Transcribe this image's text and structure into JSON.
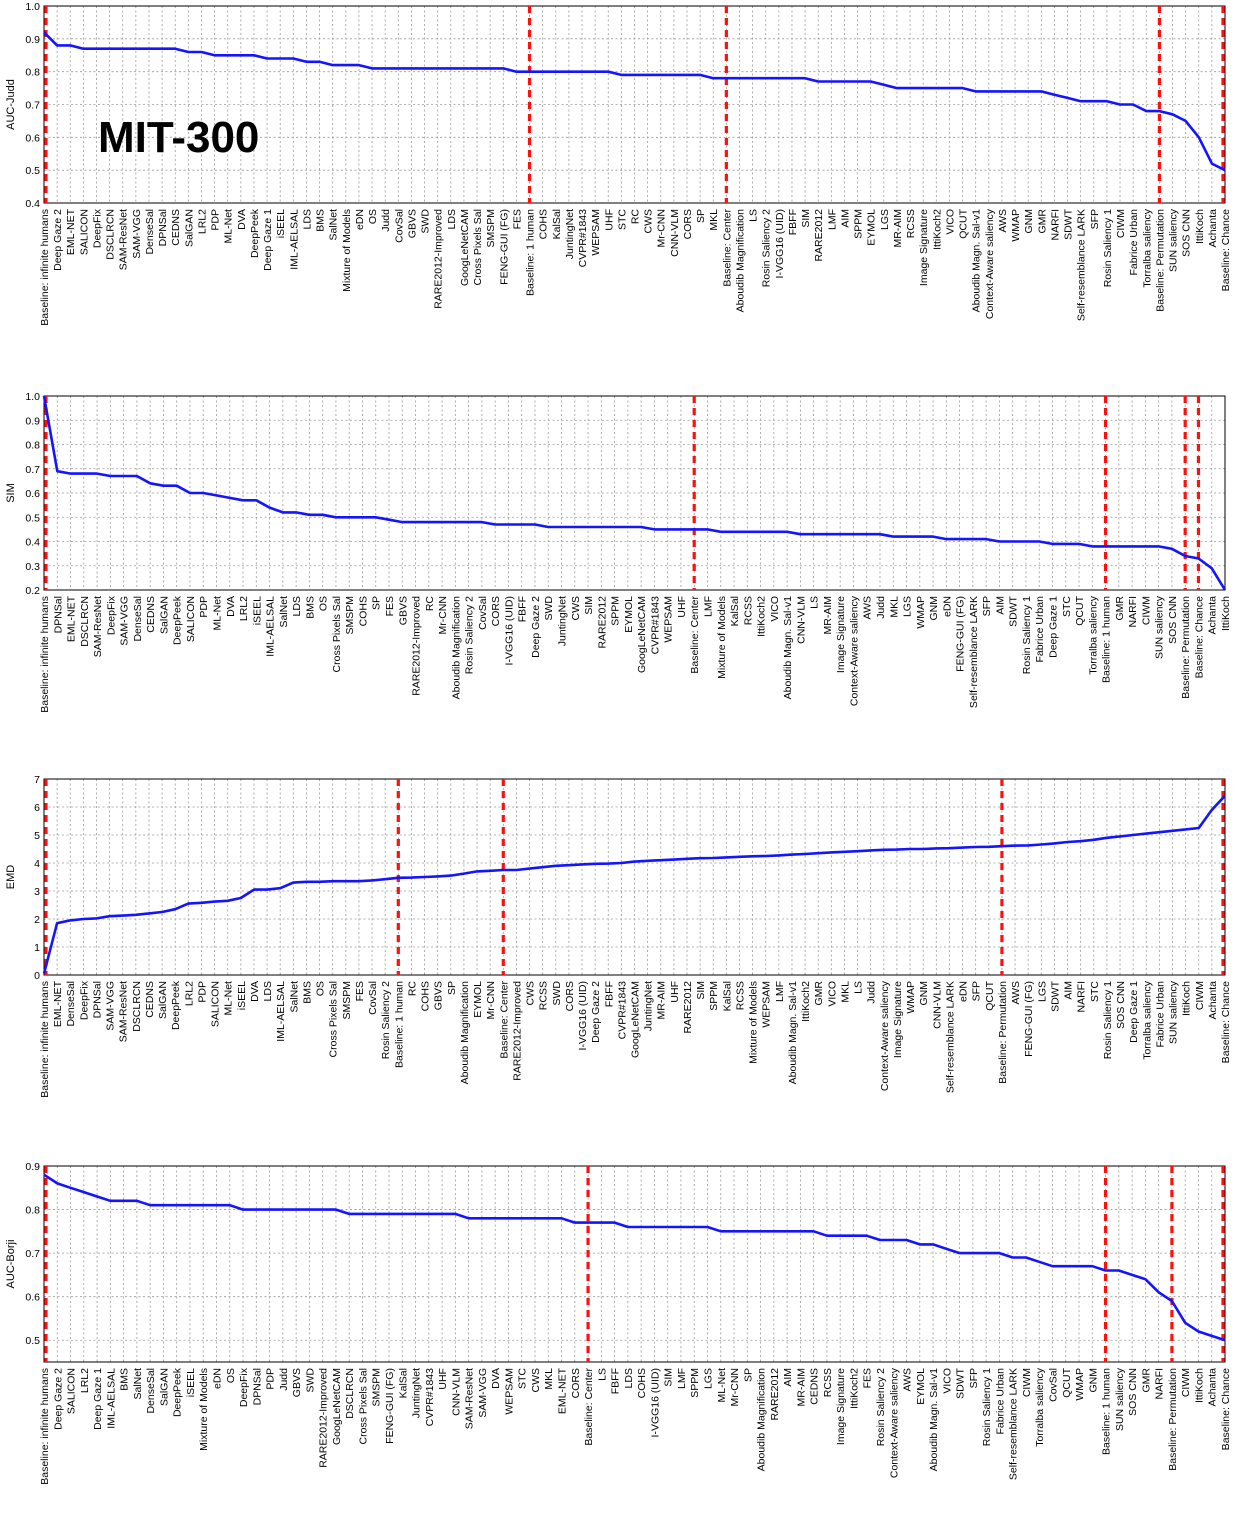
{
  "annotation": "MIT-300",
  "colors": {
    "line": "#1414ff",
    "baseline_marker": "#ff1010",
    "grid": "#9a9a9a"
  },
  "chart_data": [
    {
      "type": "line",
      "ylabel": "AUC-Judd",
      "ylim": [
        0.4,
        1.0
      ],
      "yticks": [
        "0.4",
        "0.5",
        "0.6",
        "0.7",
        "0.8",
        "0.9",
        "1.0"
      ],
      "grid": true,
      "categories": [
        "Baseline: infinite humans",
        "Deep Gaze 2",
        "EML-NET",
        "SALICON",
        "DeepFix",
        "DSCLRCN",
        "SAM-ResNet",
        "SAM-VGG",
        "DenseSal",
        "DPNSal",
        "CEDNS",
        "SalGAN",
        "LRL2",
        "PDP",
        "ML-Net",
        "DVA",
        "DeepPeek",
        "Deep Gaze 1",
        "iSEEL",
        "IML-AELSAL",
        "LDS",
        "BMS",
        "SalNet",
        "Mixture of Models",
        "eDN",
        "OS",
        "Judd",
        "CovSal",
        "GBVS",
        "SWD",
        "RARE2012-Improved",
        "LDS",
        "GoogLeNetCAM",
        "Cross Pixels Sal",
        "SMSPM",
        "FENG-GUI (FG)",
        "FES",
        "Baseline: 1 human",
        "COHS",
        "KalSal",
        "JuntingNet",
        "CVPR#1843",
        "WEPSAM",
        "UHF",
        "STC",
        "RC",
        "CWS",
        "Mr-CNN",
        "CNN-VLM",
        "CORS",
        "SP",
        "MKL",
        "Baseline: Center",
        "Aboudib Magnification",
        "LS",
        "Rosin Saliency 2",
        "I-VGG16 (UID)",
        "FBFF",
        "SIM",
        "RARE2012",
        "LMF",
        "AIM",
        "SPPM",
        "EYMOL",
        "LGS",
        "MR-AIM",
        "RCSS",
        "Image Signature",
        "IttiKoch2",
        "VICO",
        "QCUT",
        "Aboudib Magn. Sal-v1",
        "Context-Aware saliency",
        "AWS",
        "WMAP",
        "GNM",
        "GMR",
        "NARFI",
        "SDWT",
        "Self-resemblance LARK",
        "SFP",
        "Rosin Saliency 1",
        "CIWM",
        "Fabrice Urban",
        "Torralba saliency",
        "Baseline: Permutation",
        "SUN saliency",
        "SOS CNN",
        "IttiKoch",
        "Achanta",
        "Baseline: Chance"
      ],
      "values": [
        0.92,
        0.88,
        0.88,
        0.87,
        0.87,
        0.87,
        0.87,
        0.87,
        0.87,
        0.87,
        0.87,
        0.86,
        0.86,
        0.85,
        0.85,
        0.85,
        0.85,
        0.84,
        0.84,
        0.84,
        0.83,
        0.83,
        0.82,
        0.82,
        0.82,
        0.81,
        0.81,
        0.81,
        0.81,
        0.81,
        0.81,
        0.81,
        0.81,
        0.81,
        0.81,
        0.81,
        0.8,
        0.8,
        0.8,
        0.8,
        0.8,
        0.8,
        0.8,
        0.8,
        0.79,
        0.79,
        0.79,
        0.79,
        0.79,
        0.79,
        0.79,
        0.78,
        0.78,
        0.78,
        0.78,
        0.78,
        0.78,
        0.78,
        0.78,
        0.77,
        0.77,
        0.77,
        0.77,
        0.77,
        0.76,
        0.75,
        0.75,
        0.75,
        0.75,
        0.75,
        0.75,
        0.74,
        0.74,
        0.74,
        0.74,
        0.74,
        0.74,
        0.73,
        0.72,
        0.71,
        0.71,
        0.71,
        0.7,
        0.7,
        0.68,
        0.68,
        0.67,
        0.65,
        0.6,
        0.52,
        0.5
      ],
      "markers": [
        "Baseline: infinite humans",
        "Baseline: 1 human",
        "Baseline: Center",
        "Baseline: Permutation",
        "Baseline: Chance"
      ]
    },
    {
      "type": "line",
      "ylabel": "SIM",
      "ylim": [
        0.2,
        1.0
      ],
      "yticks": [
        "0.2",
        "0.3",
        "0.4",
        "0.5",
        "0.6",
        "0.7",
        "0.8",
        "0.9",
        "1.0"
      ],
      "grid": true,
      "categories": [
        "Baseline: infinite humans",
        "DPNSal",
        "EML-NET",
        "DSCLRCN",
        "SAM-ResNet",
        "DeepFix",
        "SAM-VGG",
        "DenseSal",
        "CEDNS",
        "SalGAN",
        "DeepPeek",
        "SALICON",
        "PDP",
        "ML-Net",
        "DVA",
        "LRL2",
        "iSEEL",
        "IML-AELSAL",
        "SalNet",
        "LDS",
        "BMS",
        "OS",
        "Cross Pixels Sal",
        "SMSPM",
        "COHS",
        "SP",
        "FES",
        "GBVS",
        "RARE2012-Improved",
        "RC",
        "Mr-CNN",
        "Aboudib Magnification",
        "Rosin Saliency 2",
        "CovSal",
        "CORS",
        "I-VGG16 (UID)",
        "FBFF",
        "Deep Gaze 2",
        "SWD",
        "JuntingNet",
        "CWS",
        "SIM",
        "RARE2012",
        "SPPM",
        "EYMOL",
        "GoogLeNetCAM",
        "CVPR#1843",
        "WEPSAM",
        "UHF",
        "Baseline: Center",
        "LMF",
        "Mixture of Models",
        "KalSal",
        "RCSS",
        "IttiKoch2",
        "VICO",
        "Aboudib Magn. Sal-v1",
        "CNN-VLM",
        "LS",
        "MR-AIM",
        "Image Signature",
        "Context-Aware saliency",
        "AWS",
        "Judd",
        "MKL",
        "LGS",
        "WMAP",
        "GNM",
        "eDN",
        "FENG-GUI (FG)",
        "Self-resemblance LARK",
        "SFP",
        "AIM",
        "SDWT",
        "Rosin Saliency 1",
        "Fabrice Urban",
        "Deep Gaze 1",
        "STC",
        "QCUT",
        "Torralba saliency",
        "Baseline: 1 human",
        "GMR",
        "NARFI",
        "CIWM",
        "SUN saliency",
        "SOS CNN",
        "Baseline: Permutation",
        "Baseline: Chance",
        "Achanta",
        "IttiKoch"
      ],
      "values": [
        1.0,
        0.69,
        0.68,
        0.68,
        0.68,
        0.67,
        0.67,
        0.67,
        0.64,
        0.63,
        0.63,
        0.6,
        0.6,
        0.59,
        0.58,
        0.57,
        0.57,
        0.54,
        0.52,
        0.52,
        0.51,
        0.51,
        0.5,
        0.5,
        0.5,
        0.5,
        0.49,
        0.48,
        0.48,
        0.48,
        0.48,
        0.48,
        0.48,
        0.48,
        0.47,
        0.47,
        0.47,
        0.47,
        0.46,
        0.46,
        0.46,
        0.46,
        0.46,
        0.46,
        0.46,
        0.46,
        0.45,
        0.45,
        0.45,
        0.45,
        0.45,
        0.44,
        0.44,
        0.44,
        0.44,
        0.44,
        0.44,
        0.43,
        0.43,
        0.43,
        0.43,
        0.43,
        0.43,
        0.43,
        0.42,
        0.42,
        0.42,
        0.42,
        0.41,
        0.41,
        0.41,
        0.41,
        0.4,
        0.4,
        0.4,
        0.4,
        0.39,
        0.39,
        0.39,
        0.38,
        0.38,
        0.38,
        0.38,
        0.38,
        0.38,
        0.37,
        0.34,
        0.33,
        0.29,
        0.2
      ],
      "markers": [
        "Baseline: infinite humans",
        "Baseline: Center",
        "Baseline: 1 human",
        "Baseline: Permutation",
        "Baseline: Chance"
      ]
    },
    {
      "type": "line",
      "ylabel": "EMD",
      "ylim": [
        0,
        7
      ],
      "yticks": [
        "0",
        "1",
        "2",
        "3",
        "4",
        "5",
        "6",
        "7"
      ],
      "grid": true,
      "categories": [
        "Baseline: infinite humans",
        "EML-NET",
        "DenseSal",
        "DeepFix",
        "DPNSal",
        "SAM-VGG",
        "SAM-ResNet",
        "DSCLRCN",
        "CEDNS",
        "SalGAN",
        "DeepPeek",
        "LRL2",
        "PDP",
        "SALICON",
        "ML-Net",
        "iSEEL",
        "DVA",
        "LDS",
        "IML-AELSAL",
        "SalNet",
        "BMS",
        "OS",
        "Cross Pixels Sal",
        "SMSPM",
        "FES",
        "CovSal",
        "Rosin Saliency 2",
        "Baseline: 1 human",
        "RC",
        "COHS",
        "GBVS",
        "SP",
        "Aboudib Magnification",
        "EYMOL",
        "Mr-CNN",
        "Baseline: Center",
        "RARE2012-Improved",
        "CWS",
        "RCSS",
        "SWD",
        "CORS",
        "I-VGG16 (UID)",
        "Deep Gaze 2",
        "FBFF",
        "CVPR#1843",
        "GoogLeNetCAM",
        "JuntingNet",
        "MR-AIM",
        "UHF",
        "RARE2012",
        "SIM",
        "SPPM",
        "KalSal",
        "RCSS",
        "Mixture of Models",
        "WEPSAM",
        "LMF",
        "Aboudib Magn. Sal-v1",
        "IttiKoch2",
        "GMR",
        "VICO",
        "MKL",
        "LS",
        "Judd",
        "Context-Aware saliency",
        "Image Signature",
        "WMAP",
        "GNM",
        "CNN-VLM",
        "Self-resemblance LARK",
        "eDN",
        "SFP",
        "QCUT",
        "Baseline: Permutation",
        "AWS",
        "FENG-GUI (FG)",
        "LGS",
        "SDWT",
        "AIM",
        "NARFI",
        "STC",
        "Rosin Saliency 1",
        "SOS CNN",
        "Deep Gaze 1",
        "Torralba saliency",
        "Fabrice Urban",
        "SUN saliency",
        "IttiKoch",
        "CIWM",
        "Achanta",
        "Baseline: Chance"
      ],
      "values": [
        0.05,
        1.85,
        1.95,
        2.0,
        2.02,
        2.1,
        2.12,
        2.15,
        2.2,
        2.25,
        2.35,
        2.55,
        2.58,
        2.62,
        2.65,
        2.75,
        3.05,
        3.05,
        3.1,
        3.3,
        3.33,
        3.33,
        3.35,
        3.35,
        3.35,
        3.38,
        3.42,
        3.47,
        3.48,
        3.5,
        3.52,
        3.55,
        3.62,
        3.7,
        3.72,
        3.75,
        3.75,
        3.8,
        3.85,
        3.9,
        3.92,
        3.95,
        3.97,
        3.98,
        4.0,
        4.05,
        4.08,
        4.1,
        4.12,
        4.15,
        4.17,
        4.18,
        4.2,
        4.22,
        4.24,
        4.25,
        4.27,
        4.3,
        4.32,
        4.35,
        4.38,
        4.4,
        4.42,
        4.45,
        4.47,
        4.48,
        4.5,
        4.5,
        4.52,
        4.53,
        4.55,
        4.57,
        4.58,
        4.6,
        4.62,
        4.63,
        4.66,
        4.7,
        4.75,
        4.78,
        4.83,
        4.9,
        4.95,
        5.0,
        5.05,
        5.1,
        5.15,
        5.2,
        5.25,
        5.9,
        6.4
      ],
      "markers": [
        "Baseline: infinite humans",
        "Baseline: 1 human",
        "Baseline: Center",
        "Baseline: Permutation",
        "Baseline: Chance"
      ]
    },
    {
      "type": "line",
      "ylabel": "AUC-Borji",
      "ylim": [
        0.45,
        0.9
      ],
      "yticks": [
        "0.5",
        "0.6",
        "0.7",
        "0.8",
        "0.9"
      ],
      "grid": true,
      "categories": [
        "Baseline: infinite humans",
        "Deep Gaze 2",
        "SALICON",
        "LRL2",
        "Deep Gaze 1",
        "IML-AELSAL",
        "BMS",
        "SalNet",
        "DenseSal",
        "SalGAN",
        "DeepPeek",
        "iSEEL",
        "Mixture of Models",
        "eDN",
        "OS",
        "DeepFix",
        "DPNSal",
        "PDP",
        "Judd",
        "GBVS",
        "SWD",
        "RARE2012-Improved",
        "GoogLeNetCAM",
        "DSCLRCN",
        "Cross Pixels Sal",
        "SMSPM",
        "FENG-GUI (FG)",
        "KalSal",
        "JuntingNet",
        "CVPR#1843",
        "UHF",
        "CNN-VLM",
        "SAM-ResNet",
        "SAM-VGG",
        "DVA",
        "WEPSAM",
        "STC",
        "CWS",
        "MKL",
        "EML-NET",
        "CORS",
        "Baseline: Center",
        "LS",
        "FBFF",
        "LDS",
        "COHS",
        "I-VGG16 (UID)",
        "SIM",
        "LMF",
        "SPPM",
        "LGS",
        "ML-Net",
        "Mr-CNN",
        "SP",
        "Aboudib Magnification",
        "RARE2012",
        "AIM",
        "MR-AIM",
        "CEDNS",
        "RCSS",
        "Image Signature",
        "IttiKoch2",
        "FES",
        "Rosin Saliency 2",
        "Context-Aware saliency",
        "AWS",
        "EYMOL",
        "Aboudib Magn. Sal-v1",
        "VICO",
        "SDWT",
        "SFP",
        "Rosin Saliency 1",
        "Fabrice Urban",
        "Self-resemblance LARK",
        "CIWM",
        "Torralba saliency",
        "CovSal",
        "QCUT",
        "WMAP",
        "GNM",
        "Baseline: 1 human",
        "SUN saliency",
        "SOS CNN",
        "GMR",
        "NARFI",
        "Baseline: Permutation",
        "CIWM",
        "IttiKoch",
        "Achanta",
        "Baseline: Chance"
      ],
      "values": [
        0.88,
        0.86,
        0.85,
        0.84,
        0.83,
        0.82,
        0.82,
        0.82,
        0.81,
        0.81,
        0.81,
        0.81,
        0.81,
        0.81,
        0.81,
        0.8,
        0.8,
        0.8,
        0.8,
        0.8,
        0.8,
        0.8,
        0.8,
        0.79,
        0.79,
        0.79,
        0.79,
        0.79,
        0.79,
        0.79,
        0.79,
        0.79,
        0.78,
        0.78,
        0.78,
        0.78,
        0.78,
        0.78,
        0.78,
        0.78,
        0.77,
        0.77,
        0.77,
        0.77,
        0.76,
        0.76,
        0.76,
        0.76,
        0.76,
        0.76,
        0.76,
        0.75,
        0.75,
        0.75,
        0.75,
        0.75,
        0.75,
        0.75,
        0.75,
        0.74,
        0.74,
        0.74,
        0.74,
        0.73,
        0.73,
        0.73,
        0.72,
        0.72,
        0.71,
        0.7,
        0.7,
        0.7,
        0.7,
        0.69,
        0.69,
        0.68,
        0.67,
        0.67,
        0.67,
        0.67,
        0.66,
        0.66,
        0.65,
        0.64,
        0.61,
        0.59,
        0.54,
        0.52,
        0.51,
        0.5
      ],
      "markers": [
        "Baseline: infinite humans",
        "Baseline: Center",
        "Baseline: 1 human",
        "Baseline: Permutation",
        "Baseline: Chance"
      ]
    }
  ]
}
